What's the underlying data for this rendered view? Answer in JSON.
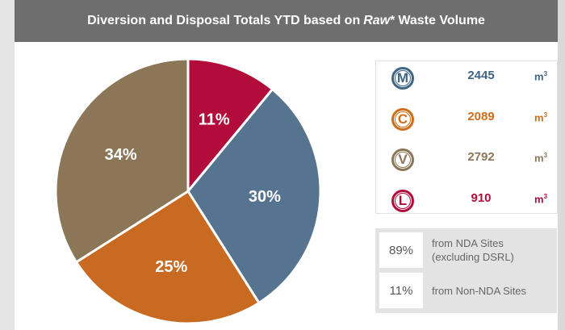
{
  "chart_data": {
    "type": "pie",
    "title": [
      "Diversion and Disposal Totals YTD based on",
      "Raw",
      "*",
      "Waste Volume"
    ],
    "values": [
      11,
      30,
      25,
      34
    ],
    "value_labels": [
      "11%",
      "30%",
      "25%",
      "34%"
    ],
    "colors": [
      "#b20d3a",
      "#56748f",
      "#c86a21",
      "#8c7658"
    ]
  },
  "legend": [
    {
      "letter": "M",
      "value": "2445",
      "unit": "m",
      "unit_power": "3",
      "color": "#3f6585"
    },
    {
      "letter": "C",
      "value": "2089",
      "unit": "m",
      "unit_power": "3",
      "color": "#d06d1a"
    },
    {
      "letter": "V",
      "value": "2792",
      "unit": "m",
      "unit_power": "3",
      "color": "#8c7658"
    },
    {
      "letter": "L",
      "value": "910",
      "unit": "m",
      "unit_power": "3",
      "color": "#b20d3a"
    }
  ],
  "sources": [
    {
      "percent": "89%",
      "text": [
        "from NDA Sites",
        "(excluding DSRL)"
      ]
    },
    {
      "percent": "11%",
      "text": [
        "from Non-NDA Sites"
      ]
    }
  ]
}
